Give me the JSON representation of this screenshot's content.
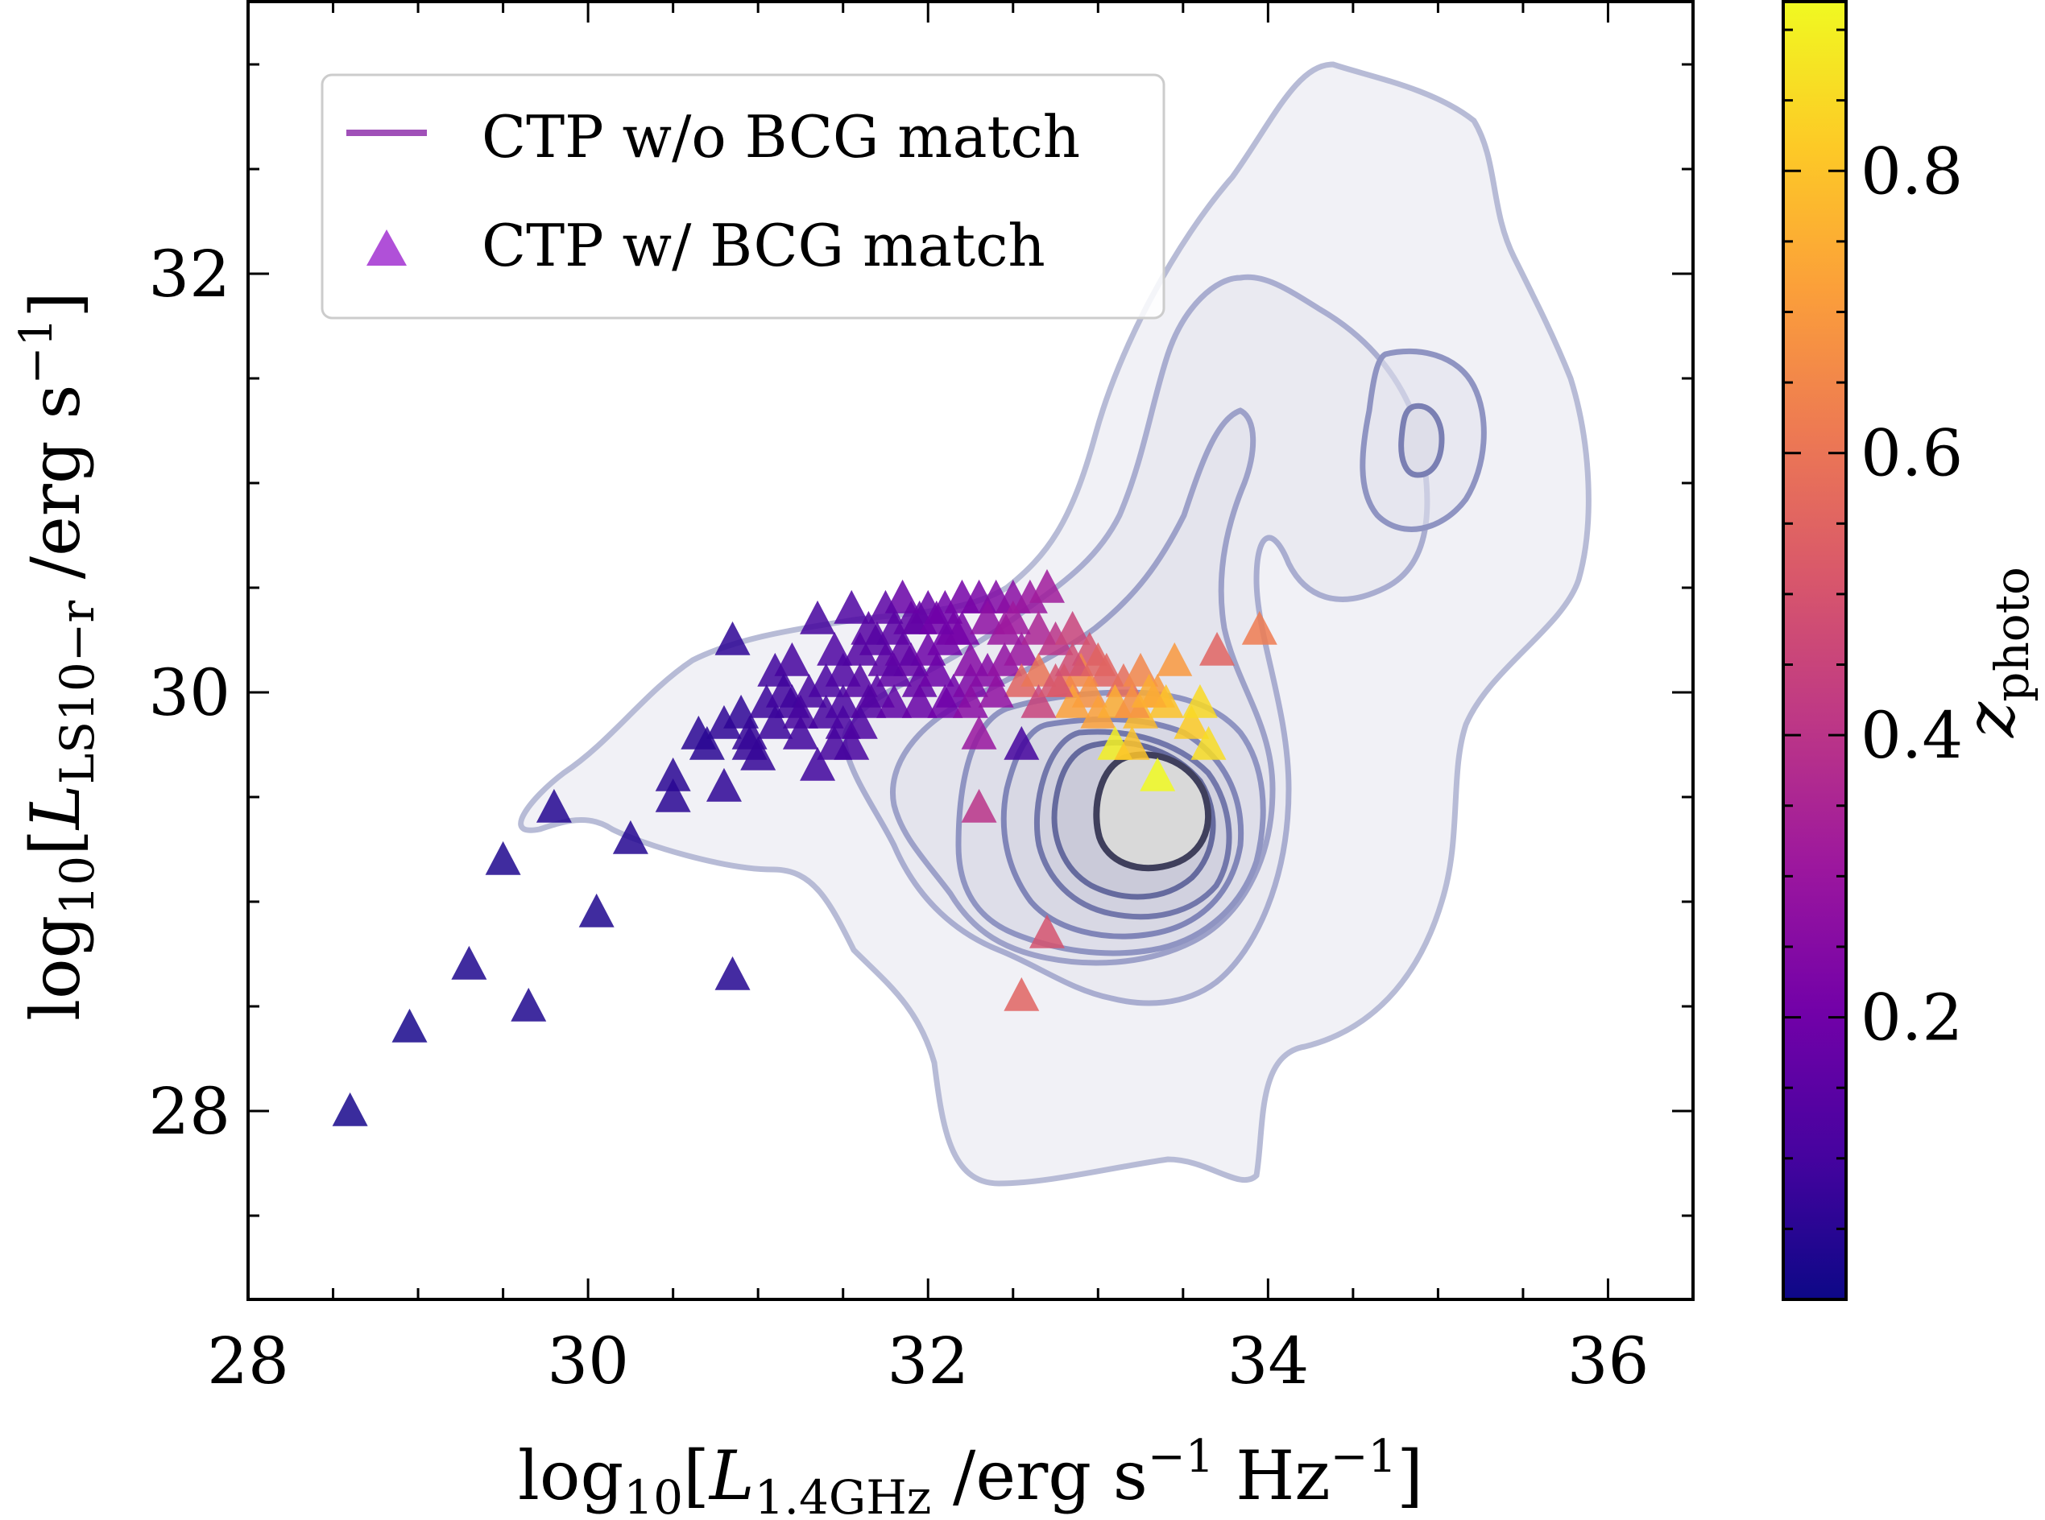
{
  "chart_data": {
    "type": "scatter",
    "xlabel": {
      "pre": "log",
      "pre_sub": "10",
      "open": "[",
      "var": "L",
      "var_sub": "1.4GHz",
      "unit": " /erg s",
      "unit_sup": "−1",
      "unit2": " Hz",
      "unit2_sup": "−1",
      "close": "]"
    },
    "ylabel": {
      "pre": "log",
      "pre_sub": "10",
      "open": "[",
      "var": "L",
      "var_sub": "LS10−r",
      "unit": " /erg s",
      "unit_sup": "−1",
      "close": "]"
    },
    "xlim": [
      28,
      36.5
    ],
    "ylim": [
      27.1,
      33.3
    ],
    "xticks": [
      "28",
      "30",
      "32",
      "34",
      "36"
    ],
    "yticks": [
      "28",
      "30",
      "32"
    ],
    "colorbar": {
      "label": "z",
      "label_sub": "photo",
      "range": [
        0.0,
        0.92
      ],
      "ticks": [
        "0.2",
        "0.4",
        "0.6",
        "0.8"
      ],
      "colormap": [
        "#0d0887",
        "#46039f",
        "#7201a8",
        "#9c179e",
        "#bd3786",
        "#d8576b",
        "#ed7953",
        "#fb9f3a",
        "#fdca26",
        "#f0f921"
      ]
    },
    "legend": [
      {
        "label": "CTP w/o BCG match",
        "marker": "line",
        "color": "#a050b8"
      },
      {
        "label": "CTP w/ BCG match",
        "marker": "triangle",
        "color": "#b050d8"
      }
    ],
    "contour_color": "#5e6aa6",
    "series": [
      {
        "marker": "triangle",
        "points": [
          [
            28.6,
            28.0,
            0.02
          ],
          [
            28.95,
            28.4,
            0.02
          ],
          [
            29.3,
            28.7,
            0.03
          ],
          [
            29.65,
            28.5,
            0.03
          ],
          [
            29.5,
            29.2,
            0.03
          ],
          [
            29.8,
            29.45,
            0.04
          ],
          [
            30.05,
            28.95,
            0.03
          ],
          [
            30.25,
            29.3,
            0.04
          ],
          [
            30.85,
            28.65,
            0.04
          ],
          [
            30.5,
            29.5,
            0.05
          ],
          [
            30.5,
            29.6,
            0.05
          ],
          [
            30.65,
            29.8,
            0.05
          ],
          [
            30.8,
            29.85,
            0.06
          ],
          [
            30.9,
            29.9,
            0.06
          ],
          [
            30.95,
            29.8,
            0.07
          ],
          [
            31.0,
            29.7,
            0.07
          ],
          [
            31.1,
            29.85,
            0.08
          ],
          [
            31.2,
            29.95,
            0.09
          ],
          [
            31.3,
            30.0,
            0.1
          ],
          [
            31.4,
            30.05,
            0.11
          ],
          [
            31.5,
            30.1,
            0.12
          ],
          [
            31.6,
            30.2,
            0.13
          ],
          [
            31.7,
            30.25,
            0.14
          ],
          [
            31.8,
            30.3,
            0.15
          ],
          [
            31.9,
            30.35,
            0.16
          ],
          [
            32.0,
            30.4,
            0.18
          ],
          [
            32.1,
            30.4,
            0.2
          ],
          [
            32.2,
            30.45,
            0.21
          ],
          [
            32.3,
            30.45,
            0.22
          ],
          [
            32.4,
            30.45,
            0.24
          ],
          [
            32.5,
            30.45,
            0.26
          ],
          [
            32.6,
            30.45,
            0.3
          ],
          [
            32.7,
            30.5,
            0.32
          ],
          [
            30.85,
            30.25,
            0.06
          ],
          [
            31.35,
            30.35,
            0.1
          ],
          [
            31.1,
            30.1,
            0.09
          ],
          [
            31.2,
            30.15,
            0.1
          ],
          [
            31.4,
            29.9,
            0.1
          ],
          [
            31.5,
            29.95,
            0.11
          ],
          [
            31.6,
            30.05,
            0.13
          ],
          [
            31.7,
            30.0,
            0.14
          ],
          [
            31.8,
            30.1,
            0.16
          ],
          [
            31.9,
            30.15,
            0.17
          ],
          [
            32.0,
            30.2,
            0.19
          ],
          [
            32.1,
            30.25,
            0.2
          ],
          [
            32.2,
            30.3,
            0.22
          ],
          [
            31.35,
            29.65,
            0.09
          ],
          [
            31.55,
            29.75,
            0.11
          ],
          [
            31.25,
            29.8,
            0.09
          ],
          [
            31.05,
            29.95,
            0.08
          ],
          [
            30.8,
            29.55,
            0.06
          ],
          [
            31.5,
            29.85,
            0.11
          ],
          [
            31.65,
            29.95,
            0.13
          ],
          [
            31.75,
            30.15,
            0.15
          ],
          [
            31.85,
            30.2,
            0.16
          ],
          [
            31.95,
            30.05,
            0.17
          ],
          [
            32.05,
            30.1,
            0.19
          ],
          [
            32.15,
            30.0,
            0.2
          ],
          [
            32.25,
            30.05,
            0.23
          ],
          [
            32.35,
            30.1,
            0.25
          ],
          [
            32.45,
            30.15,
            0.28
          ],
          [
            32.55,
            30.2,
            0.3
          ],
          [
            32.65,
            30.3,
            0.35
          ],
          [
            32.75,
            30.25,
            0.4
          ],
          [
            32.85,
            30.3,
            0.45
          ],
          [
            32.95,
            30.2,
            0.5
          ],
          [
            33.05,
            30.1,
            0.55
          ],
          [
            33.15,
            30.05,
            0.58
          ],
          [
            33.25,
            30.1,
            0.65
          ],
          [
            33.35,
            30.0,
            0.7
          ],
          [
            32.55,
            30.05,
            0.55
          ],
          [
            32.65,
            30.1,
            0.6
          ],
          [
            32.8,
            30.05,
            0.62
          ],
          [
            32.9,
            30.1,
            0.65
          ],
          [
            32.95,
            30.0,
            0.68
          ],
          [
            33.0,
            29.9,
            0.72
          ],
          [
            33.1,
            29.95,
            0.75
          ],
          [
            33.25,
            29.9,
            0.78
          ],
          [
            33.4,
            29.95,
            0.8
          ],
          [
            33.55,
            29.85,
            0.82
          ],
          [
            33.6,
            29.95,
            0.85
          ],
          [
            33.65,
            29.75,
            0.86
          ],
          [
            33.1,
            29.75,
            0.9
          ],
          [
            33.35,
            29.6,
            0.92
          ],
          [
            33.2,
            29.75,
            0.8
          ],
          [
            32.55,
            29.75,
            0.1
          ],
          [
            32.3,
            29.8,
            0.3
          ],
          [
            33.7,
            30.2,
            0.55
          ],
          [
            33.95,
            30.3,
            0.62
          ],
          [
            32.3,
            29.45,
            0.4
          ],
          [
            32.7,
            28.85,
            0.5
          ],
          [
            32.55,
            28.55,
            0.55
          ],
          [
            33.2,
            29.95,
            0.68
          ],
          [
            33.45,
            30.15,
            0.7
          ],
          [
            32.85,
            29.95,
            0.72
          ],
          [
            33.3,
            30.0,
            0.75
          ],
          [
            31.95,
            30.35,
            0.17
          ],
          [
            31.85,
            30.45,
            0.18
          ],
          [
            31.55,
            30.4,
            0.12
          ],
          [
            31.75,
            30.4,
            0.15
          ],
          [
            32.15,
            30.3,
            0.21
          ],
          [
            32.05,
            30.35,
            0.2
          ],
          [
            32.35,
            30.35,
            0.27
          ],
          [
            32.45,
            30.3,
            0.3
          ],
          [
            32.5,
            30.35,
            0.31
          ],
          [
            32.25,
            30.15,
            0.25
          ],
          [
            31.45,
            30.2,
            0.12
          ],
          [
            31.65,
            30.3,
            0.14
          ],
          [
            31.15,
            30.0,
            0.09
          ],
          [
            31.25,
            29.9,
            0.1
          ],
          [
            30.95,
            29.75,
            0.07
          ],
          [
            30.7,
            29.75,
            0.05
          ],
          [
            31.45,
            29.75,
            0.1
          ],
          [
            31.6,
            29.85,
            0.12
          ],
          [
            31.8,
            29.95,
            0.16
          ],
          [
            31.95,
            29.95,
            0.18
          ],
          [
            32.1,
            29.95,
            0.2
          ],
          [
            32.25,
            29.95,
            0.26
          ],
          [
            32.4,
            30.0,
            0.28
          ],
          [
            32.65,
            29.95,
            0.45
          ],
          [
            32.75,
            30.05,
            0.5
          ],
          [
            32.85,
            30.15,
            0.48
          ],
          [
            33.0,
            30.15,
            0.55
          ]
        ]
      }
    ]
  }
}
